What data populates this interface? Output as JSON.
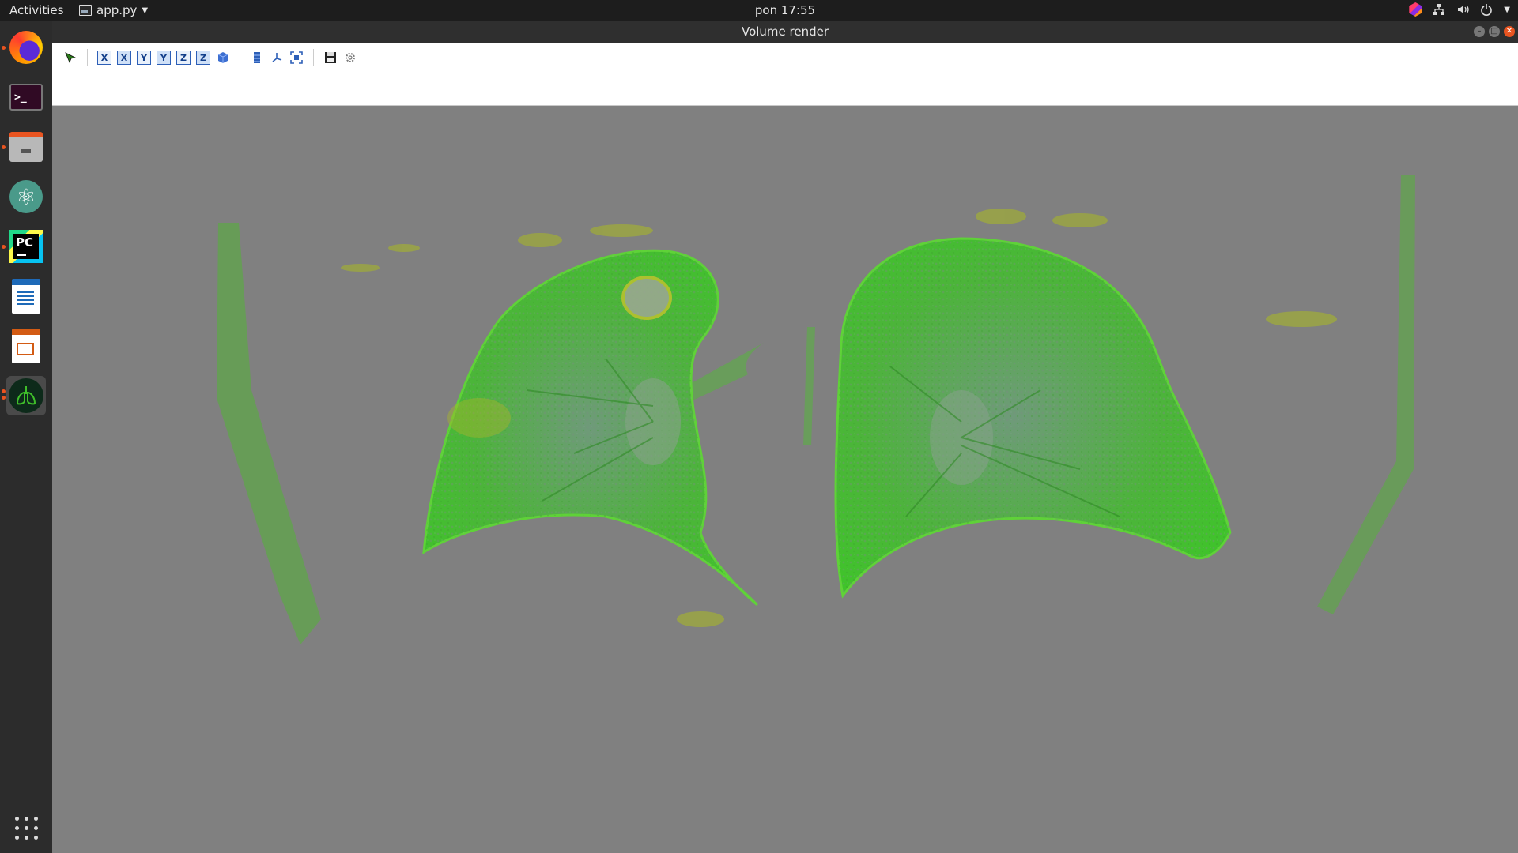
{
  "topbar": {
    "activities": "Activities",
    "app_name": "app.py",
    "clock": "pon 17:55",
    "tray_icons": [
      "app-indicator-icon",
      "network-icon",
      "volume-icon",
      "power-icon"
    ]
  },
  "dock": {
    "items": [
      {
        "name": "firefox",
        "icon": "firefox-icon",
        "running": true
      },
      {
        "name": "terminal",
        "icon": "terminal-icon",
        "running": false
      },
      {
        "name": "files",
        "icon": "files-icon",
        "running": true
      },
      {
        "name": "atom",
        "icon": "atom-icon",
        "running": false
      },
      {
        "name": "pycharm",
        "icon": "pycharm-icon",
        "running": true
      },
      {
        "name": "libreoffice-writer",
        "icon": "writer-icon",
        "running": false
      },
      {
        "name": "libreoffice-impress",
        "icon": "impress-icon",
        "running": false
      },
      {
        "name": "volume-render-app",
        "icon": "lungs-icon",
        "running": true,
        "active": true
      }
    ],
    "show_apps_icon": "grid-icon",
    "terminal_glyph": ">_",
    "pycharm_text": "PC"
  },
  "window": {
    "title": "Volume render",
    "buttons": [
      "minimize",
      "maximize",
      "close"
    ]
  },
  "toolbar": {
    "tools": [
      {
        "name": "pick-tool",
        "label": ""
      },
      {
        "name": "view-x-pos",
        "label": "X"
      },
      {
        "name": "view-x-neg",
        "label": "X"
      },
      {
        "name": "view-y-pos",
        "label": "Y"
      },
      {
        "name": "view-y-neg",
        "label": "Y"
      },
      {
        "name": "view-z-pos",
        "label": "Z"
      },
      {
        "name": "view-z-neg",
        "label": "Z"
      },
      {
        "name": "isometric-view",
        "label": ""
      },
      {
        "name": "toggle-scale-bar",
        "label": ""
      },
      {
        "name": "toggle-axes",
        "label": ""
      },
      {
        "name": "full-screen",
        "label": ""
      },
      {
        "name": "save-scene",
        "label": ""
      },
      {
        "name": "configure",
        "label": ""
      }
    ]
  },
  "render": {
    "background": "#808080",
    "tissue_color": "#3fbf2a",
    "highlight_color": "#a6b52a"
  }
}
